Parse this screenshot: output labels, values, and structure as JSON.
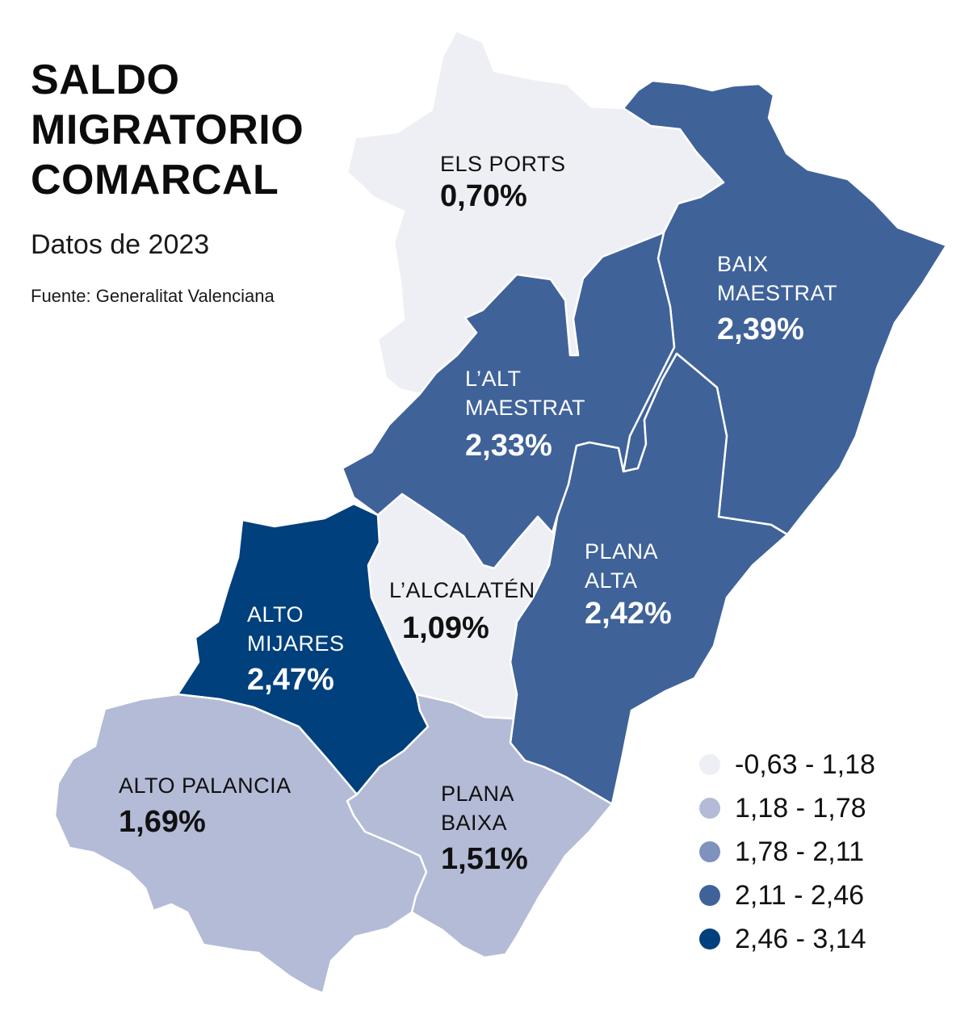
{
  "header": {
    "title_lines": [
      "SALDO",
      "MIGRATORIO",
      "COMARCAL"
    ],
    "subtitle": "Datos de 2023",
    "source": "Fuente: Generalitat Valenciana"
  },
  "colors": {
    "class1": "#eeeff4",
    "class2": "#b3bbd6",
    "class3": "#7f91bd",
    "class4": "#3f6299",
    "class5": "#00407c",
    "text_dark": "#111111",
    "text_light": "#ffffff"
  },
  "regions": [
    {
      "id": "els-ports",
      "name_lines": [
        "ELS PORTS"
      ],
      "value": "0,70%",
      "class": 1
    },
    {
      "id": "baix-maestrat",
      "name_lines": [
        "BAIX",
        "MAESTRAT"
      ],
      "value": "2,39%",
      "class": 4
    },
    {
      "id": "alt-maestrat",
      "name_lines": [
        "L’ALT",
        "MAESTRAT"
      ],
      "value": "2,33%",
      "class": 4
    },
    {
      "id": "plana-alta",
      "name_lines": [
        "PLANA",
        "ALTA"
      ],
      "value": "2,42%",
      "class": 4
    },
    {
      "id": "alcalaten",
      "name_lines": [
        "L’ALCALATÉN"
      ],
      "value": "1,09%",
      "class": 1
    },
    {
      "id": "alto-mijares",
      "name_lines": [
        "ALTO",
        "MIJARES"
      ],
      "value": "2,47%",
      "class": 5
    },
    {
      "id": "alto-palancia",
      "name_lines": [
        "ALTO PALANCIA"
      ],
      "value": "1,69%",
      "class": 2
    },
    {
      "id": "plana-baixa",
      "name_lines": [
        "PLANA",
        "BAIXA"
      ],
      "value": "1,51%",
      "class": 2
    }
  ],
  "legend": [
    {
      "label": "-0,63 - 1,18",
      "color": "#eeeff4"
    },
    {
      "label": "1,18 - 1,78",
      "color": "#b3bbd6"
    },
    {
      "label": "1,78 - 2,11",
      "color": "#7f91bd"
    },
    {
      "label": "2,11 - 2,46",
      "color": "#3f6299"
    },
    {
      "label": "2,46 - 3,14",
      "color": "#00407c"
    }
  ]
}
